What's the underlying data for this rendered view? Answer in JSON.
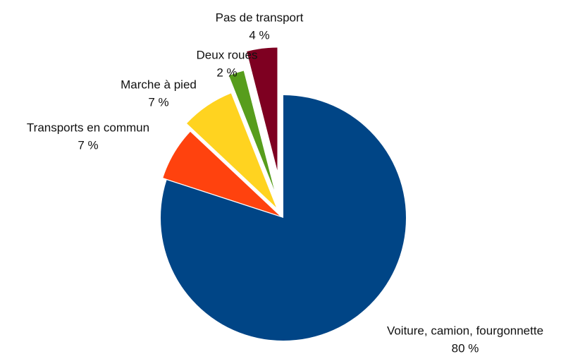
{
  "chart_data": {
    "type": "pie",
    "categories": [
      "Voiture, camion, fourgonnette",
      "Transports en commun",
      "Marche à pied",
      "Deux roues",
      "Pas de transport"
    ],
    "values": [
      80,
      7,
      7,
      2,
      4
    ],
    "value_labels": [
      "80 %",
      "7 %",
      "7 %",
      "2 %",
      "4 %"
    ],
    "colors": [
      "#004586",
      "#ff420e",
      "#ffd320",
      "#579d1c",
      "#7e0021"
    ],
    "start_angle": 0,
    "direction": "clockwise"
  }
}
